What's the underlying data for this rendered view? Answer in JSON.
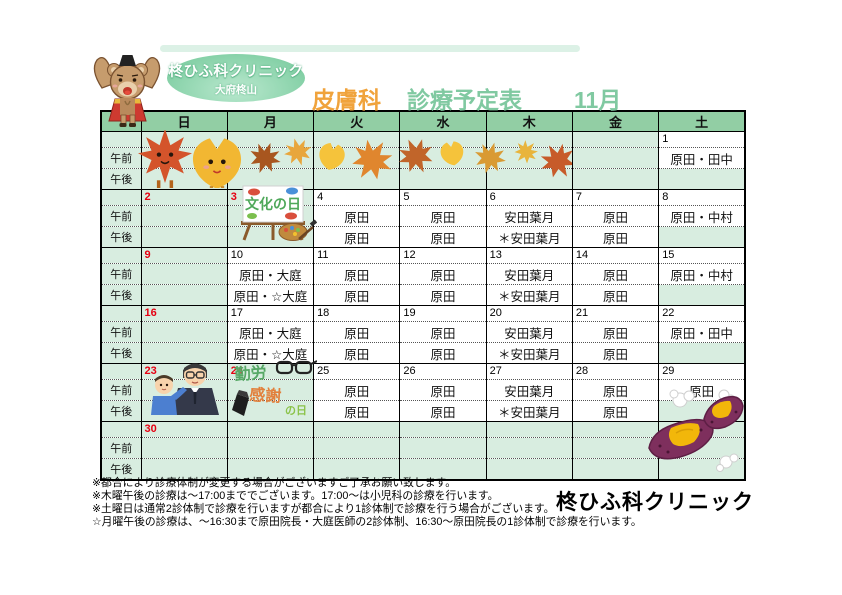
{
  "logo": {
    "clinic": "柊ひふ科クリニック",
    "branch": "大府柊山"
  },
  "title": {
    "department": "皮膚科",
    "schedule": "診療予定表",
    "month": "11月"
  },
  "calendar": {
    "day_headers": [
      "日",
      "月",
      "火",
      "水",
      "木",
      "金",
      "土"
    ],
    "am_label": "午前",
    "pm_label": "午後",
    "weeks": [
      {
        "days": [
          {
            "date": "",
            "red": false,
            "am": "",
            "pm": ""
          },
          {
            "date": "",
            "red": false,
            "am": "",
            "pm": ""
          },
          {
            "date": "",
            "red": false,
            "am": "",
            "pm": ""
          },
          {
            "date": "",
            "red": false,
            "am": "",
            "pm": ""
          },
          {
            "date": "",
            "red": false,
            "am": "",
            "pm": ""
          },
          {
            "date": "",
            "red": false,
            "am": "",
            "pm": ""
          },
          {
            "date": "1",
            "red": false,
            "am": "原田・田中",
            "pm": ""
          }
        ]
      },
      {
        "days": [
          {
            "date": "2",
            "red": true,
            "am": "",
            "pm": ""
          },
          {
            "date": "3",
            "red": true,
            "am": "",
            "pm": ""
          },
          {
            "date": "4",
            "red": false,
            "am": "原田",
            "pm": "原田"
          },
          {
            "date": "5",
            "red": false,
            "am": "原田",
            "pm": "原田"
          },
          {
            "date": "6",
            "red": false,
            "am": "安田葉月",
            "pm": "＊安田葉月"
          },
          {
            "date": "7",
            "red": false,
            "am": "原田",
            "pm": "原田"
          },
          {
            "date": "8",
            "red": false,
            "am": "原田・中村",
            "pm": ""
          }
        ]
      },
      {
        "days": [
          {
            "date": "9",
            "red": true,
            "am": "",
            "pm": ""
          },
          {
            "date": "10",
            "red": false,
            "am": "原田・大庭",
            "pm": "原田・☆大庭"
          },
          {
            "date": "11",
            "red": false,
            "am": "原田",
            "pm": "原田"
          },
          {
            "date": "12",
            "red": false,
            "am": "原田",
            "pm": "原田"
          },
          {
            "date": "13",
            "red": false,
            "am": "安田葉月",
            "pm": "＊安田葉月"
          },
          {
            "date": "14",
            "red": false,
            "am": "原田",
            "pm": "原田"
          },
          {
            "date": "15",
            "red": false,
            "am": "原田・中村",
            "pm": ""
          }
        ]
      },
      {
        "days": [
          {
            "date": "16",
            "red": true,
            "am": "",
            "pm": ""
          },
          {
            "date": "17",
            "red": false,
            "am": "原田・大庭",
            "pm": "原田・☆大庭"
          },
          {
            "date": "18",
            "red": false,
            "am": "原田",
            "pm": "原田"
          },
          {
            "date": "19",
            "red": false,
            "am": "原田",
            "pm": "原田"
          },
          {
            "date": "20",
            "red": false,
            "am": "安田葉月",
            "pm": "＊安田葉月"
          },
          {
            "date": "21",
            "red": false,
            "am": "原田",
            "pm": "原田"
          },
          {
            "date": "22",
            "red": false,
            "am": "原田・田中",
            "pm": ""
          }
        ]
      },
      {
        "days": [
          {
            "date": "23",
            "red": true,
            "am": "",
            "pm": ""
          },
          {
            "date": "24",
            "red": true,
            "am": "",
            "pm": ""
          },
          {
            "date": "25",
            "red": false,
            "am": "原田",
            "pm": "原田"
          },
          {
            "date": "26",
            "red": false,
            "am": "原田",
            "pm": "原田"
          },
          {
            "date": "27",
            "red": false,
            "am": "安田葉月",
            "pm": "＊安田葉月"
          },
          {
            "date": "28",
            "red": false,
            "am": "原田",
            "pm": "原田"
          },
          {
            "date": "29",
            "red": false,
            "am": "原田",
            "pm": ""
          }
        ]
      },
      {
        "days": [
          {
            "date": "30",
            "red": true,
            "am": "",
            "pm": ""
          },
          {
            "date": "",
            "red": false,
            "am": "",
            "pm": ""
          },
          {
            "date": "",
            "red": false,
            "am": "",
            "pm": ""
          },
          {
            "date": "",
            "red": false,
            "am": "",
            "pm": ""
          },
          {
            "date": "",
            "red": false,
            "am": "",
            "pm": ""
          },
          {
            "date": "",
            "red": false,
            "am": "",
            "pm": ""
          },
          {
            "date": "",
            "red": false,
            "am": "",
            "pm": ""
          }
        ]
      }
    ]
  },
  "notes": [
    "※都合により診療体制が変更する場合がございますご了承お願い致します。",
    "※木曜午後の診療は～17:00まででございます。17:00～は小児科の診療を行います。",
    "※土曜日は通常2診体制で診療を行いますが都合により1診体制で診療を行う場合がございます。",
    "☆月曜午後の診療は、～16:30まで原田院長・大庭医師の2診体制、16:30～原田院長の1診体制で診療を行います。"
  ],
  "footer_clinic_name": "柊ひふ科クリニック",
  "decorations": {
    "culture_day_label": "文化の日",
    "labor_labels": {
      "kinro": "勤労",
      "kansha": "感謝",
      "nohi": "の日"
    }
  },
  "colors": {
    "header_green": "#92CEA4",
    "cell_green": "#D8EDE0",
    "title_green": "#80C9A1",
    "accent_orange": "#F0A33C",
    "holiday_red": "#E60012"
  }
}
